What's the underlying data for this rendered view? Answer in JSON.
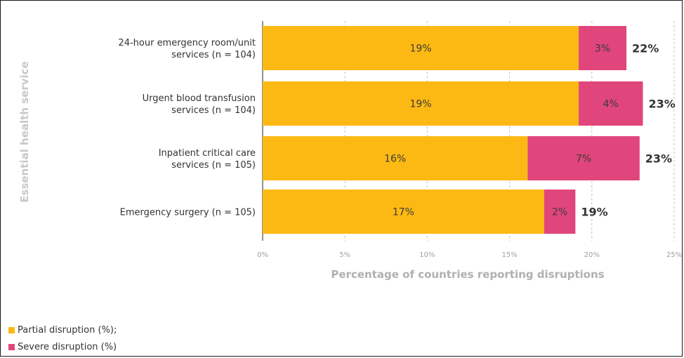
{
  "chart_data": {
    "type": "bar",
    "orientation": "horizontal",
    "stacked": true,
    "ylabel": "Essential health service",
    "xlabel": "Percentage of countries reporting disruptions",
    "xlim": [
      0,
      25
    ],
    "xticks": [
      0,
      5,
      10,
      15,
      20,
      25
    ],
    "xtick_labels": [
      "0%",
      "5%",
      "10%",
      "15%",
      "20%",
      "25%"
    ],
    "grid": "vertical",
    "categories": [
      [
        "24-hour emergency room/unit",
        "services (n = 104)"
      ],
      [
        "Urgent blood transfusion",
        "services (n = 104)"
      ],
      [
        "Inpatient critical care",
        "services (n = 105)"
      ],
      [
        "Emergency surgery (n = 105)"
      ]
    ],
    "series": [
      {
        "name": "Partial disruption (%);",
        "color": "#FDB913",
        "values": [
          19.2,
          19.2,
          16.1,
          17.1
        ],
        "labels": [
          "19%",
          "19%",
          "16%",
          "17%"
        ]
      },
      {
        "name": "Severe disruption (%)",
        "color": "#E0457B",
        "values": [
          2.9,
          3.9,
          6.8,
          1.9
        ],
        "labels": [
          "3%",
          "4%",
          "7%",
          "2%"
        ]
      }
    ],
    "totals": [
      "22%",
      "23%",
      "23%",
      "19%"
    ],
    "legend_position": "bottom-left"
  }
}
